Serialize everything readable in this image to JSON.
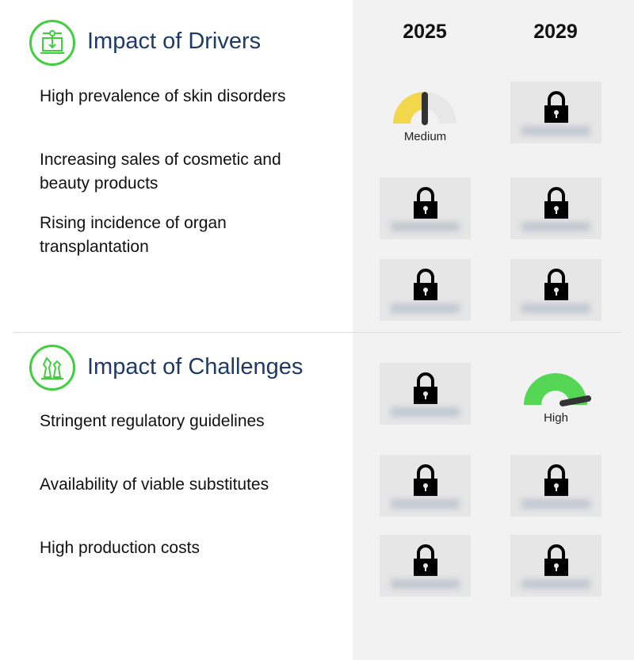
{
  "columns": [
    "2025",
    "2029"
  ],
  "drivers": {
    "title": "Impact of Drivers",
    "icon": "machine-download-icon",
    "items": [
      {
        "label": "High prevalence of skin disorders",
        "values": [
          "Medium",
          "locked"
        ]
      },
      {
        "label": "Increasing sales of cosmetic and beauty products",
        "values": [
          "locked",
          "locked"
        ]
      },
      {
        "label": "Rising incidence of organ transplantation",
        "values": [
          "locked",
          "locked"
        ]
      }
    ]
  },
  "challenges": {
    "title": "Impact of Challenges",
    "icon": "chess-pieces-icon",
    "items": [
      {
        "label": "Stringent regulatory guidelines",
        "values": [
          "locked",
          "High"
        ]
      },
      {
        "label": "Availability of viable substitutes",
        "values": [
          "locked",
          "locked"
        ]
      },
      {
        "label": "High production costs",
        "values": [
          "locked",
          "locked"
        ]
      }
    ]
  },
  "colors": {
    "accent": "#3fcf3f",
    "title": "#1f3a64",
    "medium": "#f2d64b",
    "high": "#55d655",
    "panel": "#f2f2f2"
  }
}
